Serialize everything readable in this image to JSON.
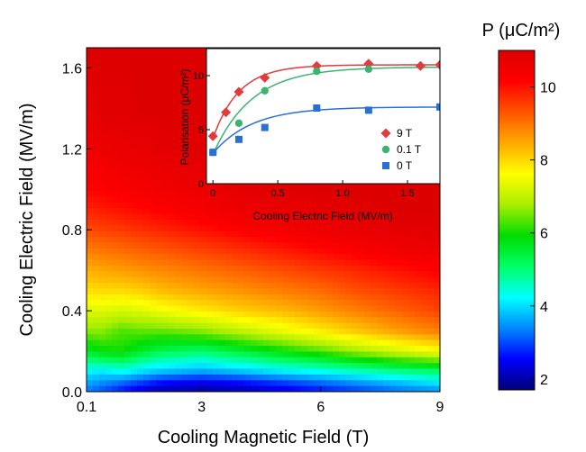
{
  "chart_data": [
    {
      "type": "heatmap",
      "xlabel": "Cooling Magnetic Field (T)",
      "ylabel": "Cooling Electric Field (MV/m)",
      "x_ticks": [
        "0.1",
        "3",
        "6",
        "9"
      ],
      "x_tick_values": [
        0.1,
        3,
        6,
        9
      ],
      "y_ticks": [
        "0.0",
        "0.4",
        "0.8",
        "1.2",
        "1.6"
      ],
      "y_tick_values": [
        0.0,
        0.4,
        0.8,
        1.2,
        1.6
      ],
      "xlim": [
        0.1,
        9
      ],
      "ylim": [
        0,
        1.7
      ],
      "colorbar": {
        "title": "P (μC/m²)",
        "ticks": [
          "2",
          "4",
          "6",
          "8",
          "10"
        ],
        "tick_values": [
          2,
          4,
          6,
          8,
          10
        ],
        "range": [
          1.7,
          11
        ],
        "colormap": [
          "#00007a",
          "#0000ff",
          "#0088ff",
          "#00ffff",
          "#00ff66",
          "#00dd00",
          "#aaee00",
          "#ffff00",
          "#ffaa00",
          "#ff5500",
          "#ff0000",
          "#dd0000"
        ]
      },
      "x": [
        0.1,
        0.5,
        1.0,
        1.5,
        2.0,
        3.0,
        4.0,
        5.0,
        6.0,
        7.0,
        8.0,
        9.0
      ],
      "y": [
        0.0,
        0.05,
        0.1,
        0.2,
        0.3,
        0.4,
        0.5,
        0.6,
        0.7,
        0.8,
        0.9,
        1.0,
        1.2,
        1.4,
        1.7
      ],
      "z": [
        [
          3.3,
          3.0,
          2.6,
          2.2,
          2.0,
          1.9,
          2.0,
          2.3,
          2.6,
          2.9,
          3.2,
          3.4
        ],
        [
          3.7,
          3.5,
          3.3,
          3.0,
          2.7,
          2.5,
          2.7,
          3.0,
          3.3,
          3.6,
          3.9,
          4.2
        ],
        [
          4.2,
          4.1,
          4.3,
          4.0,
          3.8,
          3.6,
          3.8,
          4.1,
          4.3,
          4.6,
          4.9,
          5.1
        ],
        [
          5.6,
          5.9,
          6.0,
          5.6,
          5.3,
          5.1,
          5.5,
          5.9,
          6.3,
          6.8,
          7.2,
          7.6
        ],
        [
          6.6,
          6.6,
          6.3,
          6.4,
          6.4,
          6.6,
          7.0,
          7.4,
          7.8,
          8.2,
          8.6,
          8.9
        ],
        [
          7.3,
          7.3,
          7.2,
          7.3,
          7.5,
          7.8,
          8.1,
          8.3,
          8.6,
          8.9,
          9.2,
          9.5
        ],
        [
          7.9,
          8.0,
          8.0,
          8.1,
          8.3,
          8.5,
          8.7,
          8.9,
          9.1,
          9.4,
          9.6,
          9.8
        ],
        [
          8.4,
          8.5,
          8.6,
          8.7,
          8.8,
          9.0,
          9.2,
          9.4,
          9.6,
          9.8,
          10.0,
          10.2
        ],
        [
          8.9,
          9.0,
          9.1,
          9.2,
          9.3,
          9.5,
          9.7,
          9.9,
          10.1,
          10.3,
          10.5,
          10.6
        ],
        [
          9.4,
          9.5,
          9.6,
          9.7,
          9.8,
          10.0,
          10.2,
          10.4,
          10.6,
          10.7,
          10.8,
          10.9
        ],
        [
          9.8,
          9.9,
          10.0,
          10.1,
          10.2,
          10.4,
          10.6,
          10.7,
          10.8,
          10.9,
          11.0,
          11.0
        ],
        [
          10.1,
          10.2,
          10.3,
          10.4,
          10.5,
          10.6,
          10.8,
          10.9,
          11.0,
          11.0,
          11.0,
          11.0
        ],
        [
          10.5,
          10.6,
          10.7,
          10.7,
          10.8,
          10.9,
          11.0,
          11.0,
          11.0,
          11.0,
          11.0,
          11.0
        ],
        [
          10.8,
          10.9,
          10.9,
          11.0,
          11.0,
          11.0,
          11.0,
          11.0,
          11.0,
          11.0,
          11.0,
          11.0
        ],
        [
          11.0,
          11.0,
          11.0,
          11.0,
          11.0,
          11.0,
          11.0,
          11.0,
          11.0,
          11.0,
          11.0,
          11.0
        ]
      ]
    },
    {
      "type": "scatter",
      "xlabel": "Cooling Electric Field (MV/m)",
      "ylabel": "Polarisation (μC/m²)",
      "x_ticks": [
        "0",
        "0.5",
        "1.0",
        "1.5"
      ],
      "x_tick_values": [
        0,
        0.5,
        1.0,
        1.5
      ],
      "y_ticks": [
        "0",
        "5",
        "10"
      ],
      "y_tick_values": [
        0,
        5,
        10
      ],
      "xlim": [
        -0.05,
        1.75
      ],
      "ylim": [
        0,
        12.5
      ],
      "legend_position": "bottom-right",
      "series": [
        {
          "name": "9 T",
          "color": "#e03c3c",
          "marker": "diamond",
          "x": [
            0.0,
            0.1,
            0.2,
            0.4,
            0.8,
            1.2,
            1.6,
            1.75
          ],
          "y": [
            4.4,
            6.6,
            8.5,
            9.8,
            10.9,
            11.1,
            10.9,
            11.0
          ],
          "fit": {
            "y0": 4.2,
            "a": 6.8,
            "t": 0.2
          }
        },
        {
          "name": "0.1 T",
          "color": "#3cb371",
          "marker": "circle",
          "x": [
            0.0,
            0.2,
            0.4,
            0.8,
            1.2
          ],
          "y": [
            2.9,
            5.6,
            8.6,
            10.4,
            10.6
          ],
          "fit": {
            "y0": 2.7,
            "a": 8.1,
            "t": 0.3
          }
        },
        {
          "name": "0 T",
          "color": "#2a6fd6",
          "marker": "square",
          "x": [
            0.0,
            0.2,
            0.4,
            0.8,
            1.2,
            1.75
          ],
          "y": [
            2.9,
            4.1,
            5.2,
            7.0,
            6.8,
            7.1
          ],
          "fit": {
            "y0": 2.8,
            "a": 4.3,
            "t": 0.3
          }
        }
      ]
    }
  ]
}
